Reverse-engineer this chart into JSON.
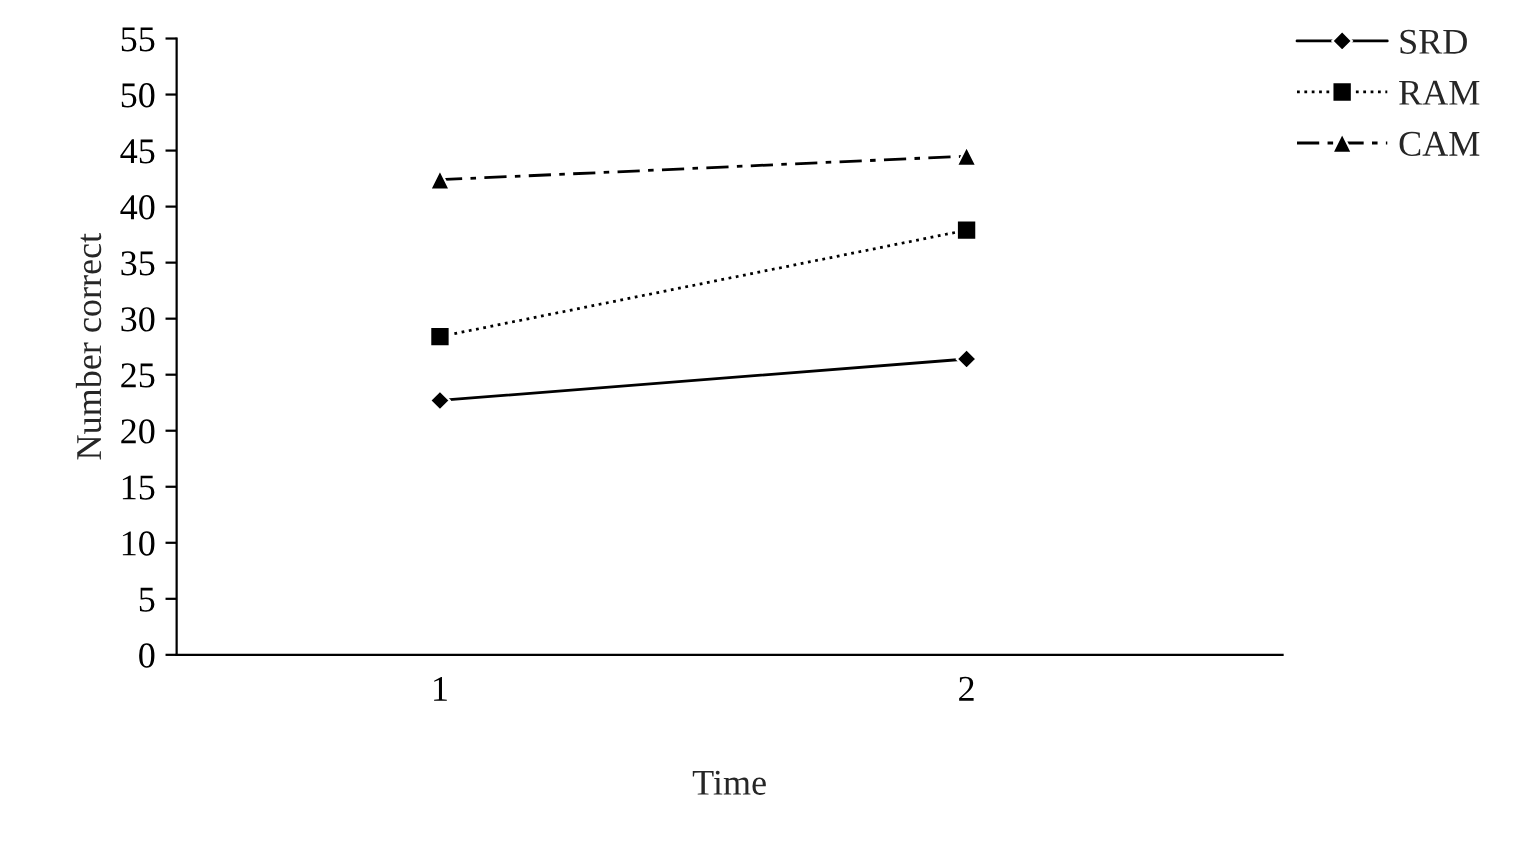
{
  "chart_data": {
    "type": "line",
    "xlabel": "Time",
    "ylabel": "Number correct",
    "categories": [
      "1",
      "2"
    ],
    "series": [
      {
        "name": "SRD",
        "color": "#000000",
        "values": [
          22.7,
          26.4
        ],
        "marker": "diamond",
        "line_style": "solid"
      },
      {
        "name": "RAM",
        "color": "#000000",
        "values": [
          28.4,
          37.9
        ],
        "marker": "square",
        "line_style": "dotted"
      },
      {
        "name": "CAM",
        "color": "#000000",
        "values": [
          42.4,
          44.5
        ],
        "marker": "triangle",
        "line_style": "dashed"
      }
    ],
    "ylim": [
      0,
      55
    ],
    "yticks": [
      0,
      5,
      10,
      15,
      20,
      25,
      30,
      35,
      40,
      45,
      50,
      55
    ],
    "grid": false,
    "legend": "top right"
  }
}
